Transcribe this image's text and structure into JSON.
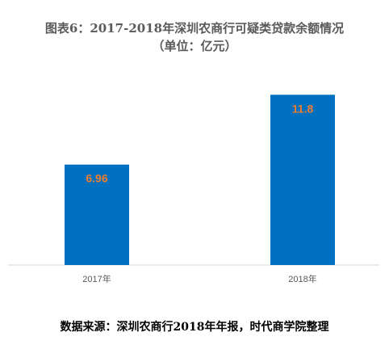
{
  "chart_data": {
    "type": "bar",
    "title": "图表6：2017-2018年深圳农商行可疑类贷款余额情况",
    "subtitle": "（单位：亿元）",
    "categories": [
      "2017年",
      "2018年"
    ],
    "values": [
      6.96,
      11.8
    ],
    "data_labels": [
      "6.96",
      "11.8"
    ],
    "xlabel": "",
    "ylabel": "",
    "ylim": [
      0,
      14
    ],
    "grid": false,
    "legend": "none",
    "colors": {
      "bar": "#0070c0",
      "label": "#ed7d31"
    }
  },
  "source": "数据来源：深圳农商行2018年年报，时代商学院整理"
}
